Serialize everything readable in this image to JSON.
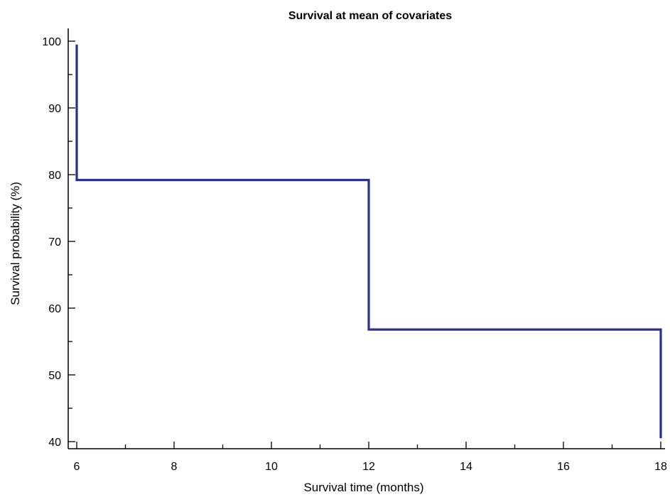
{
  "chart_data": {
    "type": "line",
    "step": true,
    "title": "Survival at mean of covariates",
    "xlabel": "Survival time (months)",
    "ylabel": "Survival probability (%)",
    "xlim": [
      6,
      18
    ],
    "ylim": [
      40,
      100
    ],
    "x_ticks": [
      6,
      8,
      10,
      12,
      14,
      16,
      18
    ],
    "y_ticks": [
      40,
      50,
      60,
      70,
      80,
      90,
      100
    ],
    "x_minor_step": 1,
    "y_minor_step": 5,
    "grid": false,
    "line_color": "#2b2f8f",
    "series": [
      {
        "x": [
          6,
          6,
          12,
          12,
          18,
          18
        ],
        "y": [
          99.5,
          79.2,
          79.2,
          56.8,
          56.8,
          40.5
        ]
      }
    ]
  }
}
